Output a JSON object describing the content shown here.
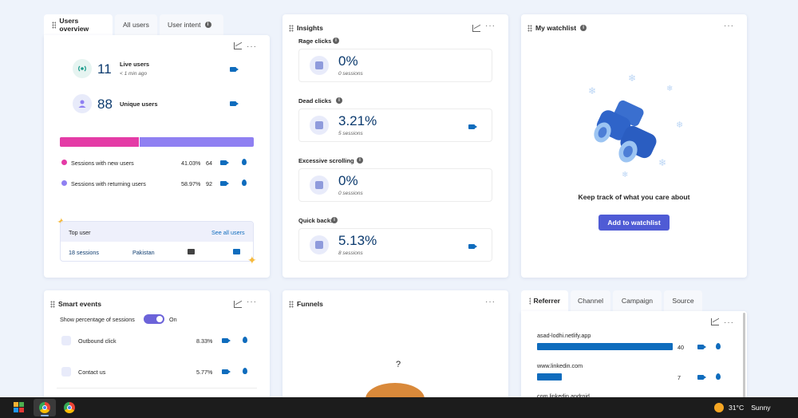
{
  "users_card": {
    "tabs": [
      "Users overview",
      "All users",
      "User intent"
    ],
    "live_users_value": "11",
    "live_users_label": "Live users",
    "live_users_time": "< 1 min ago",
    "unique_users_value": "88",
    "unique_users_label": "Unique users",
    "split_new_fraction": 0.41,
    "rows": [
      {
        "label": "Sessions with new users",
        "pct": "41.03%",
        "count": "64",
        "color": "#e43ba6"
      },
      {
        "label": "Sessions with returning users",
        "pct": "58.97%",
        "count": "92",
        "color": "#8f80f2"
      }
    ],
    "top_user": {
      "title": "Top user",
      "link": "See all users",
      "sessions": "18 sessions",
      "country": "Pakistan"
    }
  },
  "insights": {
    "title": "Insights",
    "items": [
      {
        "label": "Rage clicks",
        "value": "0%",
        "sessions": "0 sessions",
        "icon": "angry-face-icon",
        "camera": false
      },
      {
        "label": "Dead clicks",
        "value": "3.21%",
        "sessions": "5 sessions",
        "icon": "dead-click-icon",
        "camera": true
      },
      {
        "label": "Excessive scrolling",
        "value": "0%",
        "sessions": "0 sessions",
        "icon": "scroll-icon",
        "camera": false
      },
      {
        "label": "Quick backs",
        "value": "5.13%",
        "sessions": "8 sessions",
        "icon": "quick-back-icon",
        "camera": true
      }
    ]
  },
  "watchlist": {
    "title": "My watchlist",
    "tagline": "Keep track of what you care about",
    "button": "Add to watchlist"
  },
  "smart_events": {
    "title": "Smart events",
    "toggle_label": "Show percentage of sessions",
    "toggle_state": "On",
    "items": [
      {
        "label": "Outbound click",
        "pct": "8.33%"
      },
      {
        "label": "Contact us",
        "pct": "5.77%"
      }
    ]
  },
  "funnels": {
    "title": "Funnels",
    "placeholder": "?"
  },
  "referrer": {
    "tabs": [
      "Referrer",
      "Channel",
      "Campaign",
      "Source"
    ],
    "items": [
      {
        "name": "asad-lodhi.netlify.app",
        "count": "40",
        "fraction": 1.0
      },
      {
        "name": "www.linkedin.com",
        "count": "7",
        "fraction": 0.18
      },
      {
        "name": "com.linkedin.android",
        "count": "",
        "fraction": 0
      }
    ]
  },
  "taskbar": {
    "temperature": "31°C",
    "weather": "Sunny"
  },
  "colors": {
    "accent": "#0f6cbd",
    "primary_button": "#4f5bd5",
    "new_users": "#e43ba6",
    "returning_users": "#8f80f2"
  }
}
